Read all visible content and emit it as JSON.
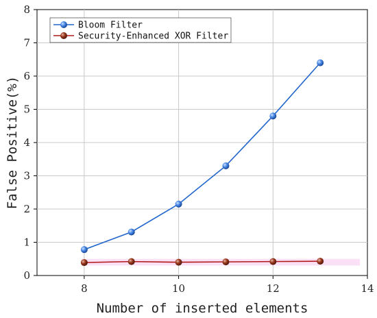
{
  "chart_data": {
    "type": "line",
    "title": "",
    "xlabel": "Number of inserted elements",
    "ylabel": "False Positive(%)",
    "xlim": [
      7,
      14
    ],
    "ylim": [
      0,
      8
    ],
    "x_ticks": [
      "8",
      "10",
      "12",
      "14"
    ],
    "y_ticks": [
      "0",
      "1",
      "2",
      "3",
      "4",
      "5",
      "6",
      "7",
      "8"
    ],
    "grid": true,
    "legend_position": "top-left",
    "x": [
      8,
      9,
      10,
      11,
      12,
      13
    ],
    "series": [
      {
        "name": "Bloom Filter",
        "values": [
          0.78,
          1.31,
          2.15,
          3.3,
          4.8,
          6.4
        ],
        "color": "#2166cc"
      },
      {
        "name": "Security-Enhanced XOR Filter",
        "values": [
          0.39,
          0.42,
          0.4,
          0.41,
          0.42,
          0.43
        ],
        "color": "#b01818"
      }
    ]
  }
}
